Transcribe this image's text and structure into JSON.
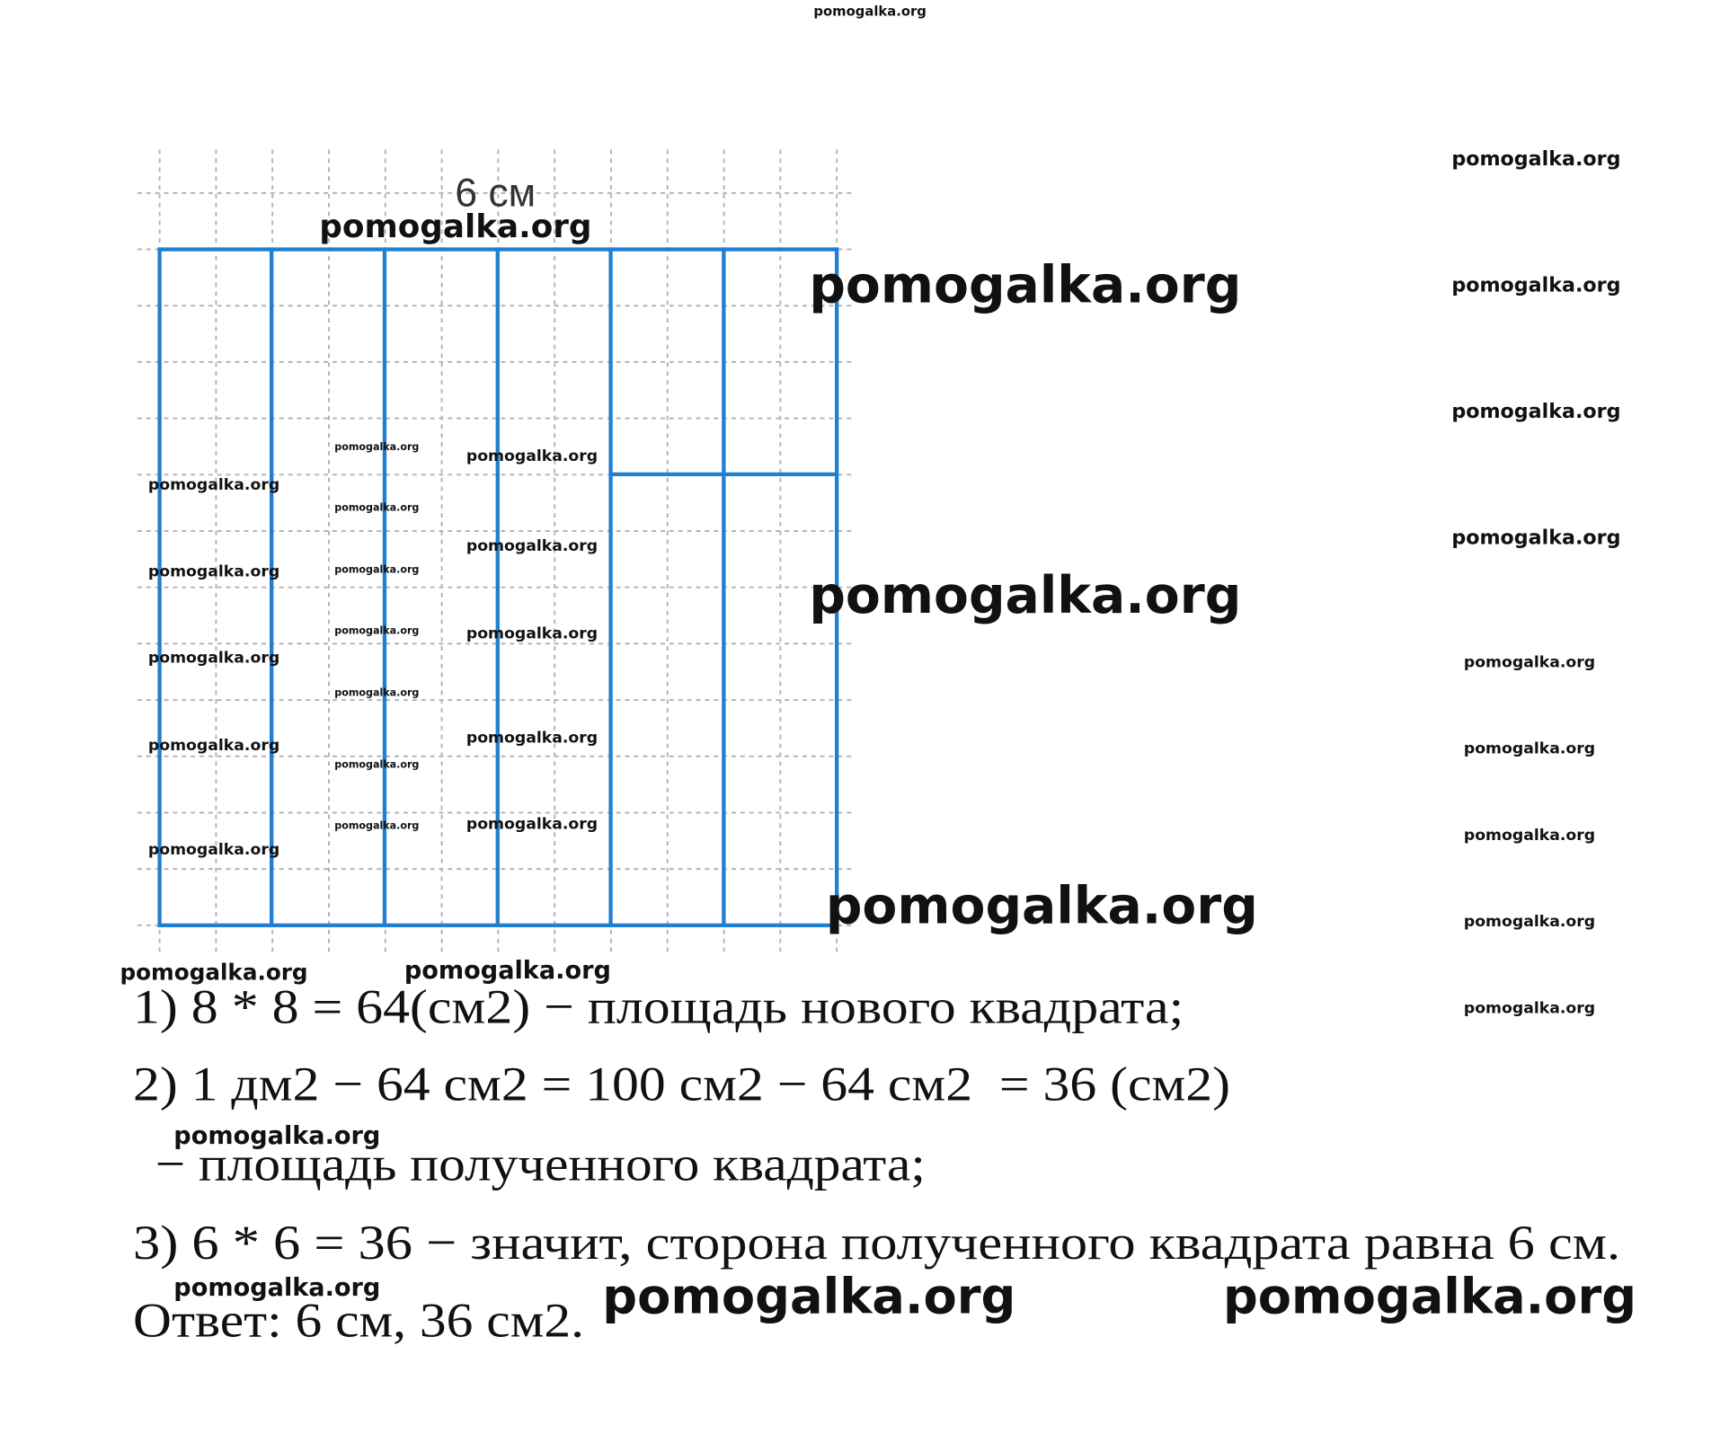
{
  "figure": {
    "label": "6 см"
  },
  "solution": {
    "lines": [
      "1) 8 * 8 = 64(см2) − площадь нового квадрата;",
      "2) 1 дм2 − 64 см2 = 100 см2 − 64 см2  = 36 (см2)",
      " − площадь полученного квадрата;",
      "3) 6 * 6 = 36 − значит, сторона полученного квадрата равна 6 см.",
      "Ответ: 6 см, 36 см2."
    ]
  },
  "watermarks": [
    "pomogalka.org",
    "pomogalka.org",
    "pomogalka.org",
    "pomogalka.org",
    "pomogalka.org",
    "pomogalka.org",
    "pomogalka.org",
    "pomogalka.org",
    "pomogalka.org",
    "pomogalka.org",
    "pomogalka.org",
    "pomogalka.org",
    "pomogalka.org",
    "pomogalka.org",
    "pomogalka.org",
    "pomogalka.org",
    "pomogalka.org",
    "pomogalka.org",
    "pomogalka.org",
    "pomogalka.org",
    "pomogalka.org",
    "pomogalka.org",
    "pomogalka.org",
    "pomogalka.org",
    "pomogalka.org",
    "pomogalka.org",
    "pomogalka.org",
    "pomogalka.org",
    "pomogalka.org",
    "pomogalka.org",
    "pomogalka.org",
    "pomogalka.org",
    "pomogalka.org",
    "pomogalka.org",
    "pomogalka.org",
    "pomogalka.org",
    "pomogalka.org"
  ]
}
